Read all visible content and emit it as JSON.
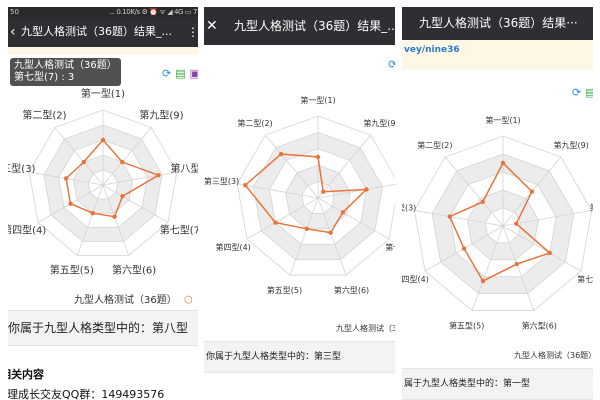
{
  "colors": {
    "series": "#e8743b",
    "header": "#2f2f33",
    "ring_fill": "#ececec",
    "grid": "#d4d4d4"
  },
  "axes": [
    "第一型(1)",
    "第九型(9)",
    "第八型(8)",
    "第七型(7)",
    "第六型(6)",
    "第五型(5)",
    "第四型(4)",
    "第三型(3)",
    "第二型(2)"
  ],
  "panels": [
    {
      "status_left": "50",
      "status_right": "... 0.10K/s ⚙ ⏰ ᯤ ◢ 4G ▭ 7",
      "back_icon": "back-arrow",
      "title": "九型人格测试（36题）结果_...",
      "menu": "⋮",
      "legend": "九型人格测试（36题）",
      "result": "你属于九型人格类型中的：第八型",
      "tooltip": {
        "line1": "九型人格测试（36题）",
        "line2": "第七型(7) : 3"
      },
      "related": "相关内容",
      "qq": "心理成长交友QQ群：149493576"
    },
    {
      "back_icon": "close",
      "title": "九型人格测试（36题）结果_...",
      "legend": "九型人格测试（3",
      "result": "你属于九型人格类型中的：第三型"
    },
    {
      "title": "九型人格测试（36题）结果···",
      "banner": "vey/nine36",
      "legend": "九型人格测试（36题）",
      "result": "属于九型人格类型中的：第一型"
    }
  ],
  "chart_data": [
    {
      "type": "radar",
      "series": [
        {
          "name": "九型人格测试（36题）",
          "values": [
            6,
            4,
            7.5,
            3,
            4.5,
            4,
            5,
            5,
            4
          ]
        }
      ],
      "axis_order": "clockwise from top: 1,9,8,7,6,5,4,3,2",
      "range": [
        0,
        10
      ],
      "rings": 5
    },
    {
      "type": "radar",
      "series": [
        {
          "name": "九型人格测试（36题）",
          "values": [
            5,
            1,
            6,
            3.5,
            4.5,
            4,
            6,
            9,
            7
          ]
        }
      ],
      "range": [
        0,
        10
      ],
      "rings": 5
    },
    {
      "type": "radar",
      "series": [
        {
          "name": "九型人格测试（36题）",
          "values": [
            7,
            5,
            1.5,
            6,
            4.5,
            6.5,
            5,
            6,
            3.5
          ]
        }
      ],
      "range": [
        0,
        10
      ],
      "rings": 5
    }
  ]
}
